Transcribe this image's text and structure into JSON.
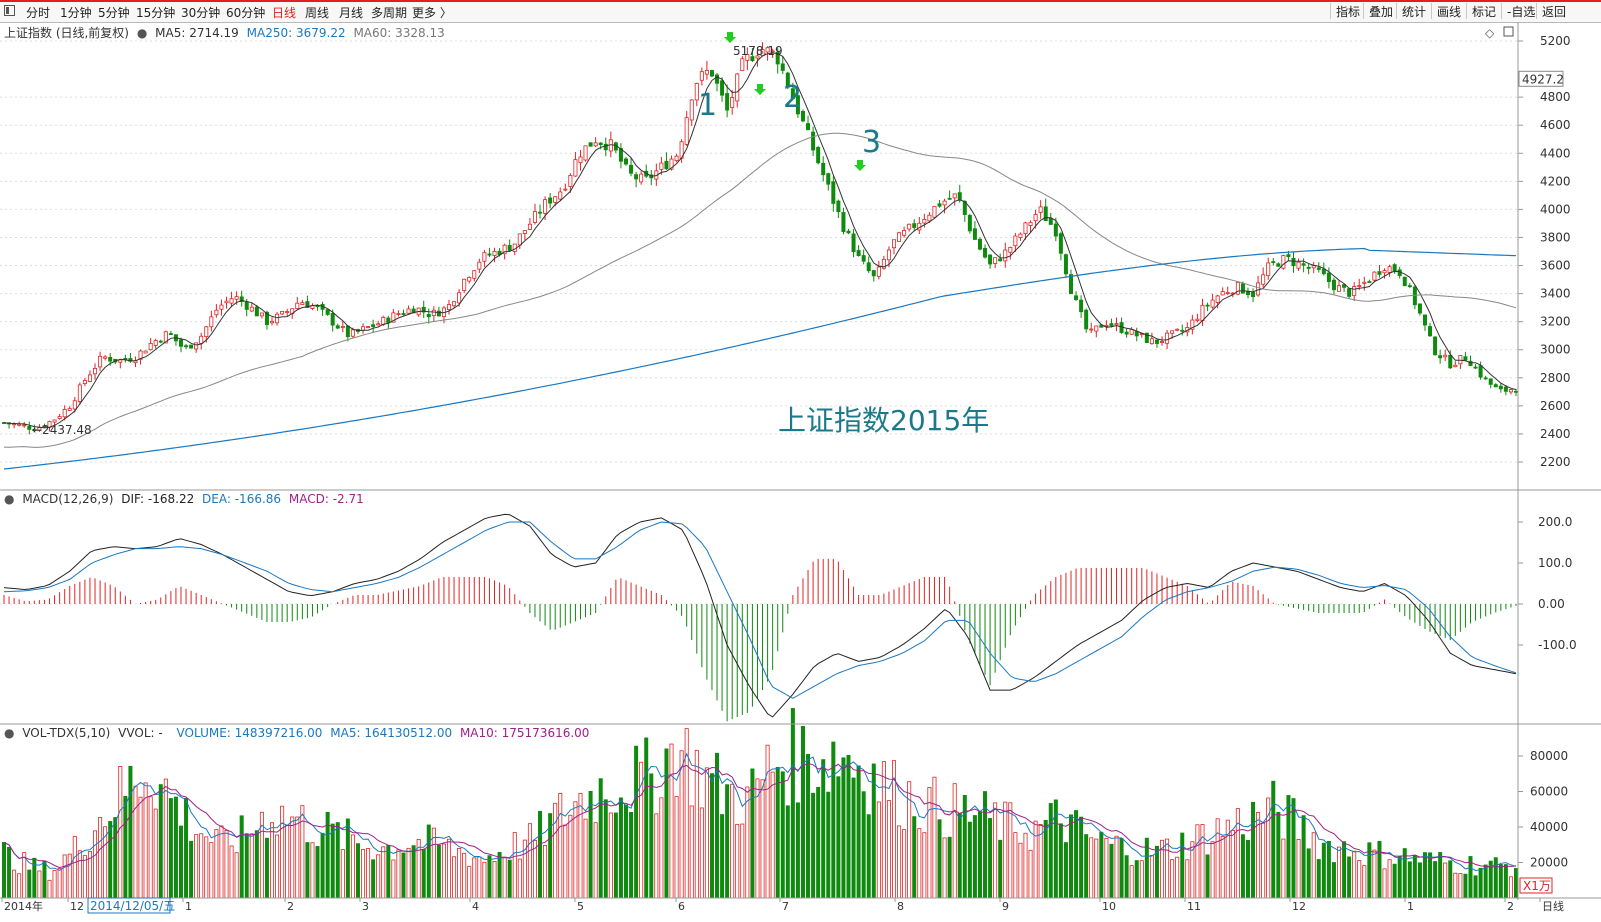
{
  "toolbar": {
    "periods": [
      "分时",
      "1分钟",
      "5分钟",
      "15分钟",
      "30分钟",
      "60分钟",
      "日线",
      "周线",
      "月线",
      "多周期",
      "更多 〉"
    ],
    "active": "日线",
    "right_buttons": [
      "指标",
      "叠加",
      "统计",
      "画线",
      "标记",
      "-自选",
      "返回"
    ]
  },
  "main_panel": {
    "title": "上证指数 (日线,前复权)",
    "ma_labels": [
      {
        "text": "MA5: 2714.19",
        "color": "#333333"
      },
      {
        "text": "MA250: 3679.22",
        "color": "#1a78c2"
      },
      {
        "text": "MA60: 3328.13",
        "color": "#777777"
      }
    ],
    "y_ticks": [
      "5200",
      "4800",
      "4600",
      "4400",
      "4200",
      "4000",
      "3800",
      "3600",
      "3400",
      "3200",
      "3000",
      "2800",
      "2600",
      "2400",
      "2200"
    ],
    "current_price": "4927.2",
    "high_label": "5178.19",
    "low_label": "2437.48",
    "annotations": [
      "1",
      "2",
      "3"
    ],
    "caption": "上证指数2015年"
  },
  "macd_panel": {
    "title": "MACD(12,26,9)",
    "dif": "DIF: -168.22",
    "dea": "DEA: -166.86",
    "macd": "MACD: -2.71",
    "y_ticks": [
      "200.0",
      "100.0",
      "0.00",
      "-100.0"
    ]
  },
  "vol_panel": {
    "title": "VOL-TDX(5,10)",
    "vvol": "VVOL: -",
    "volume": "VOLUME: 148397216.00",
    "ma5": "MA5: 164130512.00",
    "ma10": "MA10: 175173616.00",
    "y_ticks": [
      "80000",
      "60000",
      "40000",
      "20000"
    ],
    "unit": "X1万"
  },
  "x_axis": {
    "labels": [
      "2014年",
      "12",
      "2014/12/05/五",
      "1",
      "2",
      "3",
      "4",
      "5",
      "6",
      "7",
      "8",
      "9",
      "10",
      "11",
      "12",
      "1",
      "2",
      "日线"
    ]
  },
  "chart_data": [
    {
      "type": "candlestick",
      "title": "上证指数 (日线,前复权)",
      "ylim": [
        2100,
        5300
      ],
      "series": [
        {
          "name": "MA5",
          "color": "#333333"
        },
        {
          "name": "MA60",
          "color": "#777777"
        },
        {
          "name": "MA250",
          "color": "#1a78c2"
        }
      ],
      "close_approx": [
        2480,
        2460,
        2440,
        2500,
        2600,
        2800,
        2950,
        2920,
        2950,
        3050,
        3120,
        3000,
        3100,
        3300,
        3380,
        3300,
        3200,
        3250,
        3350,
        3300,
        3200,
        3100,
        3150,
        3200,
        3260,
        3300,
        3250,
        3300,
        3500,
        3650,
        3700,
        3750,
        3900,
        4050,
        4150,
        4400,
        4500,
        4450,
        4250,
        4200,
        4300,
        4400,
        4900,
        5000,
        4700,
        5050,
        5150,
        5100,
        4800,
        4500,
        4200,
        3900,
        3650,
        3500,
        3750,
        3850,
        3950,
        4050,
        4100,
        3800,
        3600,
        3700,
        3850,
        4000,
        3850,
        3400,
        3100,
        3200,
        3150,
        3100,
        3050,
        3100,
        3150,
        3300,
        3400,
        3450,
        3400,
        3600,
        3650,
        3600,
        3550,
        3450,
        3400,
        3500,
        3600,
        3550,
        3300,
        3000,
        2900,
        2950,
        2800,
        2700,
        2730
      ]
    },
    {
      "type": "line",
      "title": "MACD(12,26,9)",
      "ylim": [
        -290,
        250
      ],
      "series": [
        {
          "name": "DIF",
          "color": "#222222",
          "values": [
            40,
            35,
            45,
            80,
            130,
            140,
            135,
            140,
            160,
            145,
            120,
            90,
            60,
            30,
            20,
            30,
            50,
            60,
            80,
            110,
            150,
            180,
            210,
            220,
            190,
            120,
            90,
            100,
            170,
            200,
            210,
            180,
            60,
            -100,
            -200,
            -280,
            -220,
            -150,
            -120,
            -140,
            -130,
            -100,
            -60,
            -10,
            -80,
            -210,
            -210,
            -180,
            -140,
            -100,
            -70,
            -40,
            10,
            40,
            50,
            40,
            80,
            100,
            90,
            80,
            60,
            40,
            30,
            50,
            20,
            -40,
            -120,
            -150,
            -160,
            -170
          ]
        },
        {
          "name": "DEA",
          "color": "#1a78c2",
          "values": [
            30,
            32,
            40,
            60,
            100,
            120,
            135,
            135,
            140,
            135,
            120,
            100,
            80,
            50,
            35,
            30,
            40,
            50,
            65,
            90,
            120,
            150,
            180,
            200,
            200,
            150,
            110,
            110,
            140,
            180,
            200,
            195,
            140,
            30,
            -80,
            -200,
            -230,
            -200,
            -170,
            -150,
            -140,
            -120,
            -90,
            -40,
            -40,
            -120,
            -180,
            -190,
            -170,
            -140,
            -110,
            -80,
            -30,
            10,
            30,
            40,
            55,
            80,
            90,
            85,
            70,
            50,
            40,
            45,
            35,
            -10,
            -80,
            -130,
            -150,
            -168
          ]
        }
      ]
    },
    {
      "type": "bar",
      "title": "VOL-TDX(5,10)",
      "ylim": [
        0,
        90000
      ],
      "series": [
        {
          "name": "MA5",
          "color": "#1a78c2"
        },
        {
          "name": "MA10",
          "color": "#a0208a"
        }
      ],
      "values_approx": [
        25000,
        18000,
        15000,
        28000,
        45000,
        60000,
        75000,
        55000,
        40000,
        30000,
        35000,
        48000,
        45000,
        40000,
        35000,
        30000,
        28000,
        32000,
        30000,
        26000,
        22000,
        28000,
        32000,
        45000,
        55000,
        62000,
        65000,
        68000,
        85000,
        70000,
        60000,
        55000,
        75000,
        80000,
        78000,
        82000,
        72000,
        60000,
        55000,
        50000,
        48000,
        45000,
        40000,
        38000,
        45000,
        35000,
        30000,
        28000,
        26000,
        30000,
        35000,
        40000,
        45000,
        50000,
        40000,
        30000,
        28000,
        25000,
        24000,
        22000,
        20000,
        19000,
        18000,
        18000
      ]
    }
  ]
}
